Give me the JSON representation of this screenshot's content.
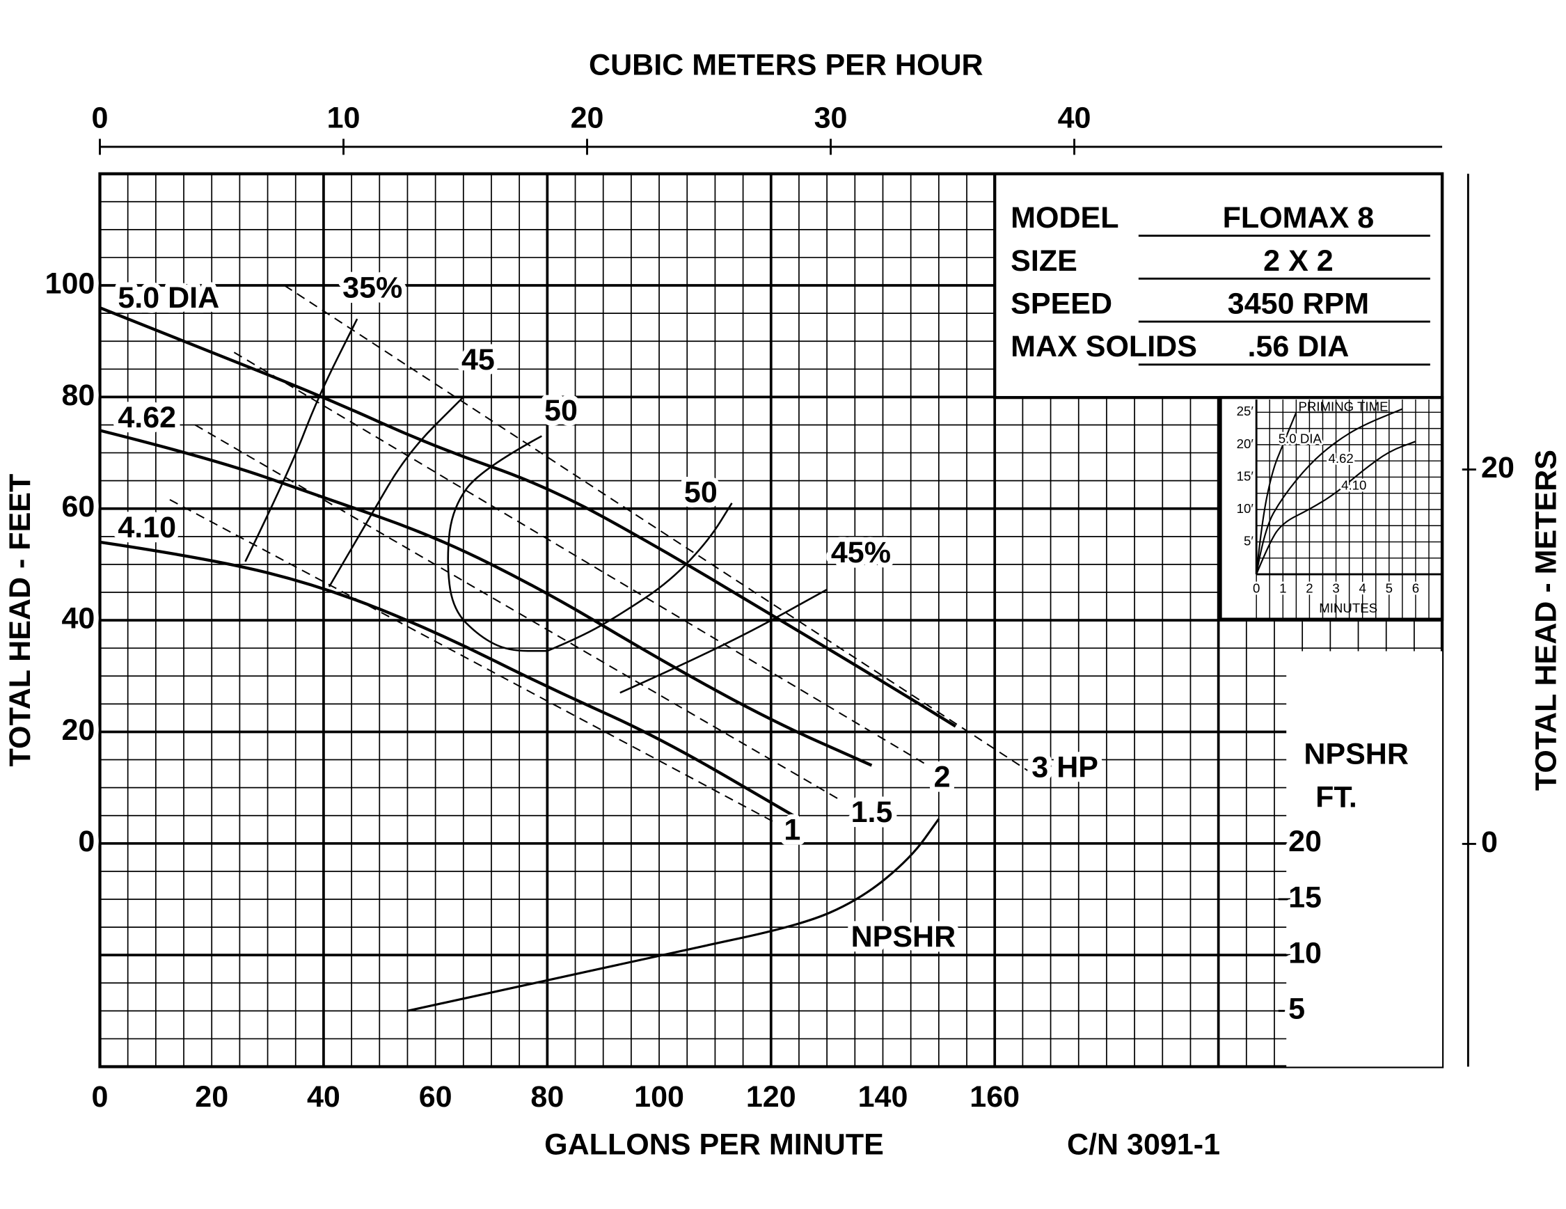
{
  "chart_data": {
    "type": "line",
    "color": "#000000",
    "grid": true,
    "x_title": "GALLONS PER MINUTE",
    "x2_title": "CUBIC METERS PER HOUR",
    "y_title": "TOTAL HEAD - FEET",
    "y2_title": "TOTAL HEAD - METERS",
    "code": "C/N 3091-1",
    "xlim": [
      0,
      240
    ],
    "xticks": [
      0,
      20,
      40,
      60,
      80,
      100,
      120,
      140,
      160
    ],
    "x2lim": [
      0,
      55.1
    ],
    "x2ticks": [
      0,
      10,
      20,
      30,
      40
    ],
    "ylim": [
      -40,
      120
    ],
    "yticks": [
      0,
      20,
      40,
      60,
      80,
      100
    ],
    "y2lim": [
      -11.9,
      35.8
    ],
    "y2ticks": [
      0,
      20
    ],
    "npshr_axis": {
      "title": "NPSHR",
      "unit": "FT.",
      "lim": [
        0,
        80
      ],
      "ticks": [
        5,
        10,
        15,
        20
      ]
    },
    "series": [
      {
        "name": "5.0 DIA",
        "x": [
          0,
          20,
          40,
          60,
          80,
          100,
          120,
          140,
          153
        ],
        "values": [
          96,
          88,
          80,
          71,
          64,
          53,
          41,
          29,
          21
        ]
      },
      {
        "name": "4.62",
        "x": [
          0,
          20,
          40,
          60,
          80,
          100,
          120,
          138
        ],
        "values": [
          74,
          69,
          62,
          55,
          45,
          33,
          22,
          14
        ]
      },
      {
        "name": "4.10",
        "x": [
          0,
          20,
          40,
          60,
          80,
          100,
          124
        ],
        "values": [
          54,
          51,
          46,
          38,
          28,
          19,
          5
        ]
      },
      {
        "name": "NPSHR",
        "axis": "npshr",
        "x": [
          55,
          100,
          125,
          136,
          145,
          150
        ],
        "values": [
          5,
          10,
          12.6,
          15,
          18.7,
          22.2
        ]
      }
    ],
    "efficiency": [
      {
        "name": "35%",
        "x": [
          26,
          34,
          39,
          46
        ],
        "values": [
          50.5,
          67,
          80,
          94
        ]
      },
      {
        "name": "45",
        "x": [
          41,
          48,
          55,
          65
        ],
        "values": [
          46,
          58,
          70,
          80
        ]
      },
      {
        "name": "50",
        "x": [
          79,
          68,
          63,
          62,
          63,
          68,
          73,
          80
        ],
        "values": [
          73,
          67,
          60,
          51,
          42,
          37,
          34.5,
          34.5
        ]
      },
      {
        "name": "50",
        "x": [
          80,
          86,
          93,
          102,
          109,
          113
        ],
        "values": [
          34.5,
          37,
          41,
          47,
          54.5,
          61
        ]
      },
      {
        "name": "45%",
        "x": [
          93,
          111,
          130
        ],
        "values": [
          27,
          35,
          45.5
        ]
      }
    ],
    "power": [
      {
        "name": "3 HP",
        "x": [
          33,
          166
        ],
        "values": [
          100,
          13
        ]
      },
      {
        "name": "2",
        "x": [
          24,
          148
        ],
        "values": [
          88,
          14
        ]
      },
      {
        "name": "1.5",
        "x": [
          17,
          132
        ],
        "values": [
          75,
          8
        ]
      },
      {
        "name": "1",
        "x": [
          12.5,
          121
        ],
        "values": [
          61.6,
          3.6
        ]
      }
    ],
    "info": {
      "rows": [
        [
          "MODEL",
          "FLOMAX 8"
        ],
        [
          "SIZE",
          "2 X 2"
        ],
        [
          "SPEED",
          "3450 RPM"
        ],
        [
          "MAX SOLIDS",
          ".56 DIA"
        ]
      ]
    },
    "inset": {
      "title": "PRIMING TIME",
      "x_title": "MINUTES",
      "xlim": [
        0,
        7
      ],
      "xticks": [
        0,
        1,
        2,
        3,
        4,
        5,
        6
      ],
      "ylim": [
        0,
        26.2
      ],
      "yticks": [
        {
          "value": 5,
          "label": "5′"
        },
        {
          "value": 10,
          "label": "10′"
        },
        {
          "value": 15,
          "label": "15′"
        },
        {
          "value": 20,
          "label": "20′"
        },
        {
          "value": 25,
          "label": "25′"
        }
      ],
      "series": [
        {
          "name": "5.0 DIA",
          "x": [
            0,
            0.2,
            0.6,
            1,
            1.5
          ],
          "values": [
            0,
            8,
            16,
            20,
            25
          ]
        },
        {
          "name": "4.62",
          "x": [
            0,
            0.3,
            1,
            2,
            3,
            4,
            5.5
          ],
          "values": [
            0,
            7,
            12,
            17,
            20.5,
            23,
            25.5
          ]
        },
        {
          "name": "4.10",
          "x": [
            0,
            0.5,
            1,
            2,
            3,
            4,
            5,
            6
          ],
          "values": [
            0,
            5,
            8,
            10,
            12.5,
            16,
            19,
            20.5
          ]
        }
      ]
    }
  }
}
